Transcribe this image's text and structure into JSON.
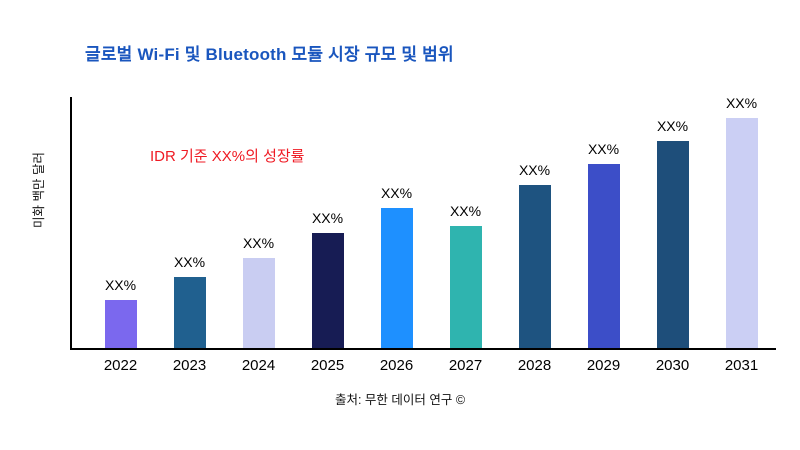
{
  "colors": {
    "title": "#1a56be",
    "annotation": "#ef1a23",
    "axis": "#000000"
  },
  "chart_data": {
    "type": "bar",
    "title": "글로벌 Wi-Fi 및 Bluetooth 모듈 시장 규모 및 범위",
    "ylabel": "미화 백만 달러",
    "xlabel": "",
    "annotation": "IDR 기준 XX%의 성장률",
    "source": "출처: 무한 데이터 연구 ©",
    "categories": [
      "2022",
      "2023",
      "2024",
      "2025",
      "2026",
      "2027",
      "2028",
      "2029",
      "2030",
      "2031"
    ],
    "values": [
      21,
      31,
      39,
      50,
      61,
      53,
      71,
      80,
      90,
      100
    ],
    "bar_labels": [
      "XX%",
      "XX%",
      "XX%",
      "XX%",
      "XX%",
      "XX%",
      "XX%",
      "XX%",
      "XX%",
      "XX%"
    ],
    "bar_colors": [
      "#7b68ee",
      "#20608f",
      "#c9cdf2",
      "#171c54",
      "#1e90ff",
      "#2fb4af",
      "#1e5380",
      "#3c4ec8",
      "#1e4e7a",
      "#cbcff4"
    ],
    "ylim": [
      0,
      100
    ],
    "grid": false,
    "legend": "none",
    "y_tick_labels": []
  }
}
